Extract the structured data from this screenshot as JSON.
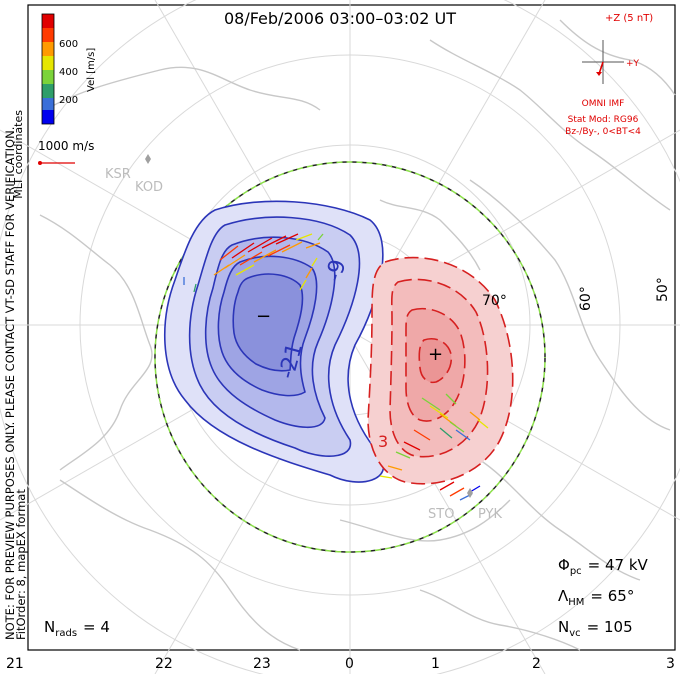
{
  "title": "08/Feb/2006 03:00–03:02 UT",
  "colorbar": {
    "ticks": [
      "600",
      "400",
      "200"
    ],
    "units": "Vel [m/s]",
    "colors": [
      "#0000ee",
      "#3a6fd8",
      "#2e9e6a",
      "#7bd33a",
      "#e6e600",
      "#ff9a00",
      "#ff3b00",
      "#e00000"
    ]
  },
  "side_note": "MLT coordinates",
  "left_notes": [
    "NOTE: FOR PREVIEW PURPOSES ONLY. PLEASE CONTACT VT-SD STAFF FOR VERIFICATION.",
    "FitOrder: 8, mapEX format"
  ],
  "scale_vector_label": "1000 m/s",
  "stations": [
    {
      "name": "KSR"
    },
    {
      "name": "KOD"
    },
    {
      "name": "STO"
    },
    {
      "name": "PYK"
    }
  ],
  "imf": {
    "z_label": "+Z (5 nT)",
    "y_label": "+Y",
    "source": "OMNI IMF",
    "model": "Stat Mod: RG96",
    "condition": "Bz-/By-, 0<BT<4"
  },
  "lat_labels": [
    "70°",
    "60°",
    "50°"
  ],
  "contour_labels": [
    "-9",
    "-21",
    "3"
  ],
  "potential_symbols": {
    "min": "−",
    "max": "+"
  },
  "stats": {
    "phi_symbol": "Φ",
    "phi_sub": "pc",
    "phi_value": "= 47 kV",
    "lambda_symbol": "Λ",
    "lambda_sub": "HM",
    "lambda_value": "= 65°",
    "nvc_symbol": "N",
    "nvc_sub": "vc",
    "nvc_value": "= 105",
    "nrads_symbol": "N",
    "nrads_sub": "rads",
    "nrads_value": "= 4"
  },
  "mlt_ticks": [
    "21",
    "22",
    "23",
    "0",
    "1",
    "2",
    "3"
  ],
  "colors": {
    "negative_cell": "#2b35b8",
    "positive_cell": "#d62020",
    "negative_fill": "#c9cdf2",
    "positive_fill": "#f6d0d0",
    "coastline": "#c8c8c8",
    "grid": "#d9d9d9",
    "imf": "#e00000"
  }
}
